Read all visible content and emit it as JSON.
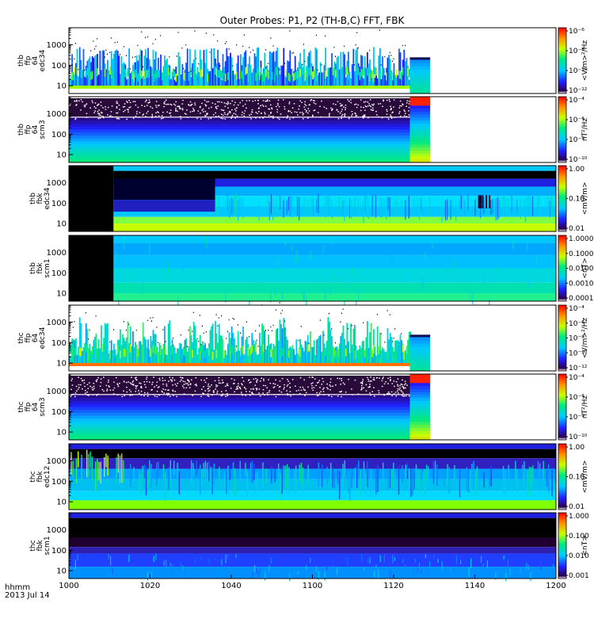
{
  "chart_data": {
    "type": "heatmap",
    "title": "Outer Probes: P1, P2 (TH-B,C) FFT, FBK",
    "x_axis": {
      "range": [
        "1000",
        "1200"
      ],
      "tick_labels": [
        "1000",
        "1020",
        "1040",
        "1100",
        "1120",
        "1140",
        "1200"
      ],
      "corner_labels": [
        "hhmm",
        "2013 Jul 14"
      ]
    },
    "panels": [
      {
        "id": "thb-ffp-edc34",
        "vertical_label": [
          "thb",
          "ffp",
          "64",
          "edc34"
        ],
        "y_ticks": [
          "1000",
          "100",
          "10"
        ],
        "y_scale": "log",
        "colorbar_label": "<V/m>²/Hz",
        "colorbar_ticks": [
          "10⁻⁶",
          "10⁻⁸",
          "10⁻¹⁰",
          "10⁻¹²"
        ],
        "data_end": "1124",
        "fill_end": "1129",
        "data_start": "1000",
        "pattern": "spiky"
      },
      {
        "id": "thb-ffp-scm3",
        "vertical_label": [
          "thb",
          "ffp",
          "64",
          "scm3"
        ],
        "y_ticks": [
          "1000",
          "100",
          "10"
        ],
        "y_scale": "log",
        "colorbar_label": "nT²/Hz",
        "colorbar_ticks": [
          "10⁻⁴",
          "10⁻⁶",
          "10⁻⁸",
          "10⁻¹⁰"
        ],
        "data_end": "1124",
        "fill_end": "1129",
        "data_start": "1000",
        "pattern": "bands-noise"
      },
      {
        "id": "thb-fbk-edc34",
        "vertical_label": [
          "thb",
          "fbk",
          "edc34"
        ],
        "y_ticks": [
          "1000",
          "100",
          "10"
        ],
        "y_scale": "log",
        "colorbar_label": "<mV/m>",
        "colorbar_ticks": [
          "1.00",
          "0.10",
          "0.01"
        ],
        "data_end": "1200",
        "fill_end": "1200",
        "data_start": "1011",
        "pattern": "fbk-e"
      },
      {
        "id": "thb-fbk-scm1",
        "vertical_label": [
          "thb",
          "fbk",
          "scm1"
        ],
        "y_ticks": [
          "1000",
          "100",
          "10"
        ],
        "y_scale": "log",
        "colorbar_label": "<nT>",
        "colorbar_ticks": [
          "1.0000",
          "0.1000",
          "0.0100",
          "0.0010",
          "0.0001"
        ],
        "data_end": "1200",
        "fill_end": "1200",
        "data_start": "1011",
        "pattern": "fbk-b"
      },
      {
        "id": "thc-ffp-edc34",
        "vertical_label": [
          "thc",
          "ffp",
          "64",
          "edc34"
        ],
        "y_ticks": [
          "1000",
          "100",
          "10"
        ],
        "y_scale": "log",
        "colorbar_label": "<V/m>²/Hz",
        "colorbar_ticks": [
          "10⁻⁴",
          "10⁻⁶",
          "10⁻⁸",
          "10⁻¹⁰",
          "10⁻¹²"
        ],
        "data_end": "1124",
        "fill_end": "1129",
        "data_start": "1000",
        "pattern": "spiky-strong"
      },
      {
        "id": "thc-ffp-scm3",
        "vertical_label": [
          "thc",
          "ffp",
          "64",
          "scm3"
        ],
        "y_ticks": [
          "1000",
          "100",
          "10"
        ],
        "y_scale": "log",
        "colorbar_label": "nT²/Hz",
        "colorbar_ticks": [
          "10⁻⁴",
          "10⁻⁶",
          "10⁻⁸",
          "10⁻¹⁰"
        ],
        "data_end": "1124",
        "fill_end": "1129",
        "data_start": "1000",
        "pattern": "bands-noise"
      },
      {
        "id": "thc-fbk-edc12",
        "vertical_label": [
          "thc",
          "fbk",
          "edc12"
        ],
        "y_ticks": [
          "1000",
          "100",
          "10"
        ],
        "y_scale": "log",
        "colorbar_label": "<mV/m>",
        "colorbar_ticks": [
          "1.00",
          "0.10",
          "0.01"
        ],
        "data_end": "1200",
        "fill_end": "1200",
        "data_start": "1000",
        "pattern": "fbk-e2"
      },
      {
        "id": "thc-fbk-scm1",
        "vertical_label": [
          "thc",
          "fbk",
          "scm1"
        ],
        "y_ticks": [
          "1000",
          "100",
          "10"
        ],
        "y_scale": "log",
        "colorbar_label": "<nT>",
        "colorbar_ticks": [
          "1.000",
          "0.100",
          "0.010",
          "0.001"
        ],
        "data_end": "1200",
        "fill_end": "1200",
        "data_start": "1000",
        "pattern": "fbk-b2"
      }
    ]
  }
}
